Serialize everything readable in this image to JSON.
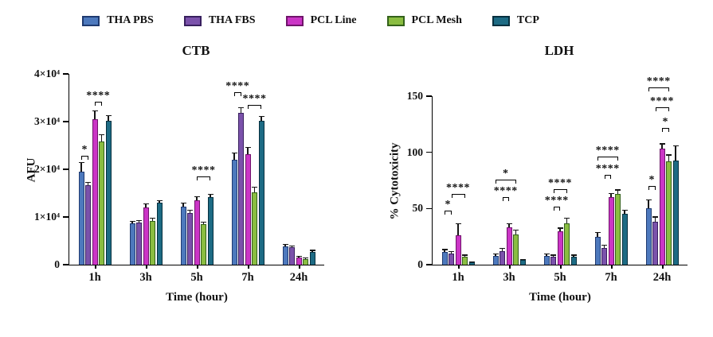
{
  "legend": {
    "items": [
      {
        "label": "THA PBS",
        "color": "#4d79bd",
        "border": "#1f3a70"
      },
      {
        "label": "THA FBS",
        "color": "#7b52ab",
        "border": "#38205e"
      },
      {
        "label": "PCL Line",
        "color": "#cb35c6",
        "border": "#70136b"
      },
      {
        "label": "PCL Mesh",
        "color": "#8abd41",
        "border": "#33611a"
      },
      {
        "label": "TCP",
        "color": "#1d6b84",
        "border": "#06303f"
      }
    ]
  },
  "chart_data": [
    {
      "id": "ctb",
      "type": "bar",
      "title": "CTB",
      "ylabel": "AFU",
      "xlabel": "Time (hour)",
      "ylim": [
        0,
        40000
      ],
      "grid": false,
      "legend_position": "top",
      "yticks": [
        {
          "value": 0,
          "label": "0"
        },
        {
          "value": 10000,
          "label": "1×10⁴"
        },
        {
          "value": 20000,
          "label": "2×10⁴"
        },
        {
          "value": 30000,
          "label": "3×10⁴"
        },
        {
          "value": 40000,
          "label": "4×10⁴"
        }
      ],
      "categories": [
        "1h",
        "3h",
        "5h",
        "7h",
        "24h"
      ],
      "series": [
        {
          "name": "THA PBS",
          "color": "#4d79bd",
          "border": "#1f3a70",
          "values": [
            19500,
            8600,
            12200,
            22000,
            3900
          ],
          "errors": [
            2000,
            600,
            800,
            1500,
            500
          ]
        },
        {
          "name": "THA FBS",
          "color": "#7b52ab",
          "border": "#38205e",
          "values": [
            16600,
            8800,
            10800,
            31800,
            3600
          ],
          "errors": [
            800,
            600,
            700,
            1200,
            400
          ]
        },
        {
          "name": "PCL Line",
          "color": "#cb35c6",
          "border": "#70136b",
          "values": [
            30500,
            12000,
            13500,
            23200,
            1500
          ],
          "errors": [
            1800,
            800,
            800,
            1500,
            300
          ]
        },
        {
          "name": "PCL Mesh",
          "color": "#8abd41",
          "border": "#33611a",
          "values": [
            25900,
            9200,
            8500,
            15200,
            1200
          ],
          "errors": [
            1500,
            600,
            500,
            1200,
            300
          ]
        },
        {
          "name": "TCP",
          "color": "#1d6b84",
          "border": "#06303f",
          "values": [
            30200,
            13000,
            14200,
            30200,
            2700
          ],
          "errors": [
            1200,
            500,
            600,
            1000,
            400
          ]
        }
      ],
      "annotations": [
        {
          "group": 0,
          "bars": [
            0,
            1
          ],
          "label": "*",
          "y": 22800
        },
        {
          "group": 0,
          "bars": [
            2,
            3
          ],
          "label": "****",
          "y": 34200
        },
        {
          "group": 2,
          "bars": [
            2,
            4
          ],
          "label": "****",
          "y": 18500
        },
        {
          "group": 3,
          "bars": [
            0,
            1
          ],
          "label": "****",
          "y": 36200
        },
        {
          "group": 3,
          "bars": [
            2,
            4
          ],
          "label": "****",
          "y": 33500
        }
      ]
    },
    {
      "id": "ldh",
      "type": "bar",
      "title": "LDH",
      "ylabel": "% Cytotoxicity",
      "xlabel": "Time (hour)",
      "ylim": [
        0,
        150
      ],
      "grid": false,
      "legend_position": "top",
      "yticks": [
        {
          "value": 0,
          "label": "0"
        },
        {
          "value": 50,
          "label": "50"
        },
        {
          "value": 100,
          "label": "100"
        },
        {
          "value": 150,
          "label": "150"
        }
      ],
      "categories": [
        "1h",
        "3h",
        "5h",
        "7h",
        "24h"
      ],
      "series": [
        {
          "name": "THA PBS",
          "color": "#4d79bd",
          "border": "#1f3a70",
          "values": [
            11,
            8,
            8,
            25,
            50
          ],
          "errors": [
            3,
            2,
            2,
            4,
            8
          ]
        },
        {
          "name": "THA FBS",
          "color": "#7b52ab",
          "border": "#38205e",
          "values": [
            10,
            12,
            7,
            15,
            38
          ],
          "errors": [
            2,
            3,
            2,
            3,
            5
          ]
        },
        {
          "name": "PCL Line",
          "color": "#cb35c6",
          "border": "#70136b",
          "values": [
            26,
            33,
            30,
            60,
            103
          ],
          "errors": [
            11,
            4,
            3,
            4,
            5
          ]
        },
        {
          "name": "PCL Mesh",
          "color": "#8abd41",
          "border": "#33611a",
          "values": [
            7,
            27,
            37,
            63,
            92
          ],
          "errors": [
            2,
            4,
            5,
            4,
            6
          ]
        },
        {
          "name": "TCP",
          "color": "#1d6b84",
          "border": "#06303f",
          "values": [
            2,
            4,
            7,
            45,
            93
          ],
          "errors": [
            1,
            1,
            2,
            4,
            13
          ]
        }
      ],
      "annotations": [
        {
          "group": 0,
          "bars": [
            0,
            1
          ],
          "label": "*",
          "y": 48
        },
        {
          "group": 0,
          "bars": [
            1,
            3
          ],
          "label": "****",
          "y": 63
        },
        {
          "group": 1,
          "bars": [
            1,
            2
          ],
          "label": "****",
          "y": 60
        },
        {
          "group": 1,
          "bars": [
            0,
            3
          ],
          "label": "*",
          "y": 76
        },
        {
          "group": 2,
          "bars": [
            1,
            2
          ],
          "label": "****",
          "y": 52
        },
        {
          "group": 2,
          "bars": [
            1,
            3
          ],
          "label": "****",
          "y": 67
        },
        {
          "group": 3,
          "bars": [
            1,
            2
          ],
          "label": "****",
          "y": 80
        },
        {
          "group": 3,
          "bars": [
            0,
            3
          ],
          "label": "****",
          "y": 96
        },
        {
          "group": 4,
          "bars": [
            0,
            1
          ],
          "label": "*",
          "y": 70
        },
        {
          "group": 4,
          "bars": [
            2,
            3
          ],
          "label": "*",
          "y": 122
        },
        {
          "group": 4,
          "bars": [
            1,
            3
          ],
          "label": "****",
          "y": 140
        },
        {
          "group": 4,
          "bars": [
            0,
            3
          ],
          "label": "****",
          "y": 158
        }
      ]
    }
  ]
}
